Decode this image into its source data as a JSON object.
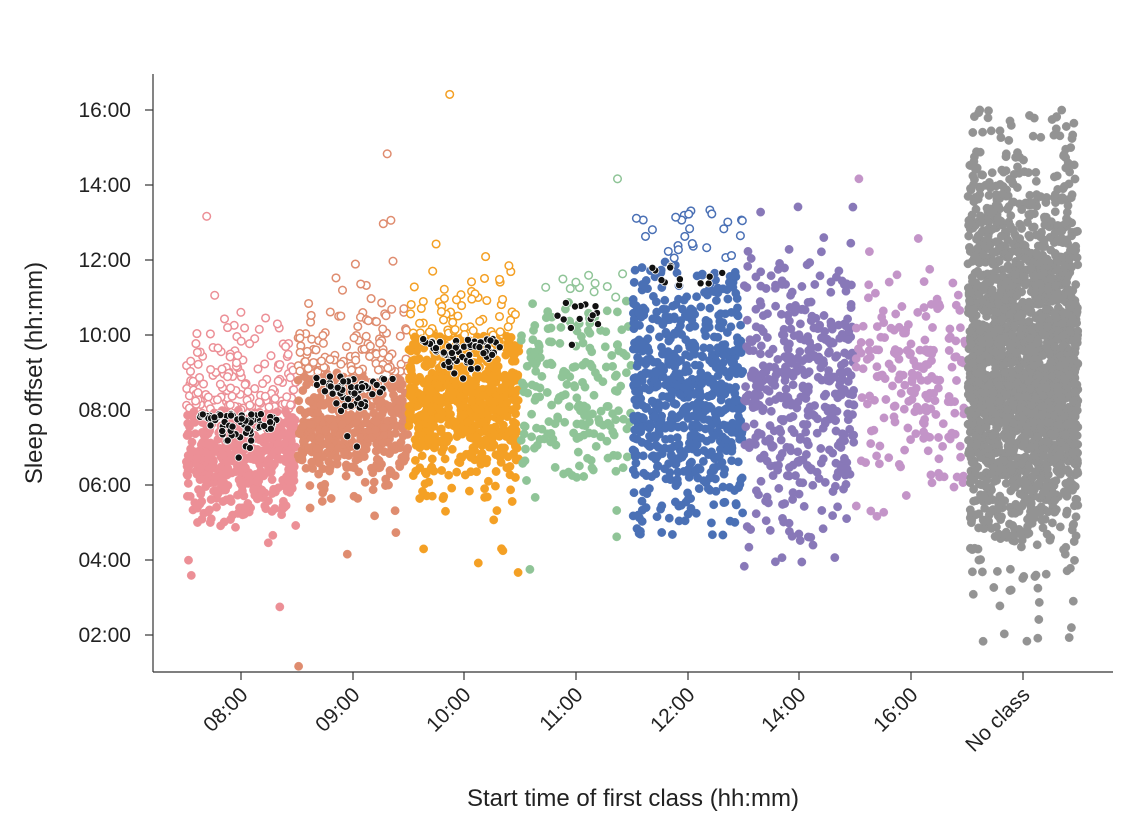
{
  "chart_data": {
    "type": "scatter",
    "subtype": "jittered strip plot",
    "xlabel": "Start time of first class (hh:mm)",
    "ylabel": "Sleep offset (hh:mm)",
    "ylim": [
      "01:00",
      "17:00"
    ],
    "y_ticks": [
      "02:00",
      "04:00",
      "06:00",
      "08:00",
      "10:00",
      "12:00",
      "14:00",
      "16:00"
    ],
    "grid": false,
    "legend": "none",
    "categories": [
      "08:00",
      "09:00",
      "10:00",
      "11:00",
      "12:00",
      "14:00",
      "16:00",
      "No class"
    ],
    "series": [
      {
        "category": "08:00",
        "color": "#ec8f96",
        "n_points": 620,
        "median": "07:00",
        "q1": "06:20",
        "q3": "08:00",
        "min": "02:45",
        "max": "13:10",
        "sleep_on_time_before": "08:00",
        "open_markers_above": "08:00",
        "highlighted_black_dots": 70
      },
      {
        "category": "09:00",
        "color": "#df8c6f",
        "n_points": 560,
        "median": "07:50",
        "q1": "07:10",
        "q3": "08:50",
        "min": "01:10",
        "max": "14:50",
        "sleep_on_time_before": "09:00",
        "open_markers_above": "09:00",
        "highlighted_black_dots": 60
      },
      {
        "category": "10:00",
        "color": "#f4a024",
        "n_points": 720,
        "median": "08:20",
        "q1": "07:30",
        "q3": "09:10",
        "min": "03:40",
        "max": "16:25",
        "sleep_on_time_before": "10:00",
        "open_markers_above": "10:00",
        "highlighted_black_dots": 65
      },
      {
        "category": "11:00",
        "color": "#8fc497",
        "n_points": 210,
        "median": "08:40",
        "q1": "07:50",
        "q3": "09:40",
        "min": "03:45",
        "max": "14:10",
        "sleep_on_time_before": "11:00",
        "open_markers_above": "11:00",
        "highlighted_black_dots": 14
      },
      {
        "category": "12:00",
        "color": "#4a70b5",
        "n_points": 700,
        "median": "08:30",
        "q1": "07:20",
        "q3": "09:50",
        "min": "04:40",
        "max": "13:20",
        "sleep_on_time_before": "12:00",
        "open_markers_above": "12:00",
        "highlighted_black_dots": 12
      },
      {
        "category": "14:00",
        "color": "#8878b8",
        "n_points": 430,
        "median": "08:40",
        "q1": "07:20",
        "q3": "09:50",
        "min": "03:50",
        "max": "13:25",
        "sleep_on_time_before": "14:00",
        "open_markers_above": "14:00",
        "highlighted_black_dots": 0
      },
      {
        "category": "16:00",
        "color": "#c394c8",
        "n_points": 200,
        "median": "08:40",
        "q1": "07:40",
        "q3": "09:40",
        "min": "05:10",
        "max": "14:10",
        "sleep_on_time_before": "16:00",
        "open_markers_above": "16:00",
        "highlighted_black_dots": 0
      },
      {
        "category": "No class",
        "color": "#939393",
        "n_points": 2300,
        "median": "09:00",
        "q1": "07:30",
        "q3": "10:50",
        "min": "01:50",
        "max": "16:00",
        "sleep_on_time_before": null,
        "open_markers_above": null,
        "highlighted_black_dots": 0
      }
    ]
  }
}
